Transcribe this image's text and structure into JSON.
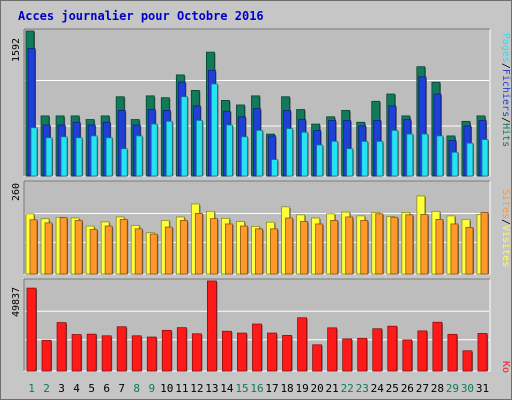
{
  "title": "Acces journalier pour Octobre 2016",
  "colors": {
    "background": "#c6c6c6",
    "panel": "#bebebe",
    "hits": "#117a5b",
    "files": "#1f3fd9",
    "pages": "#26e3f2",
    "visits": "#ffff3a",
    "sites": "#ff9a2a",
    "ko": "#ff1a1a",
    "weekend_label": "#117a5b",
    "weekday_label": "#000000"
  },
  "chart_data": [
    {
      "type": "bar",
      "title": "",
      "ymax_label": "1592",
      "ymax": 1592,
      "grid": true,
      "legend": [
        {
          "label": "Pages",
          "color": "#26e3f2"
        },
        {
          "label": "Fichiers",
          "color": "#1f3fd9"
        },
        {
          "label": "Hits",
          "color": "#117a5b"
        }
      ],
      "legend_separator": "/",
      "categories": [
        "1",
        "2",
        "3",
        "4",
        "5",
        "6",
        "7",
        "8",
        "9",
        "10",
        "11",
        "12",
        "13",
        "14",
        "15",
        "16",
        "17",
        "18",
        "19",
        "20",
        "21",
        "22",
        "23",
        "24",
        "25",
        "26",
        "27",
        "28",
        "29",
        "30",
        "31"
      ],
      "series": [
        {
          "name": "Hits",
          "values": [
            1592,
            660,
            660,
            660,
            620,
            660,
            870,
            620,
            880,
            860,
            1110,
            940,
            1360,
            830,
            780,
            880,
            460,
            870,
            730,
            570,
            650,
            720,
            590,
            820,
            900,
            660,
            1200,
            1030,
            440,
            600,
            660
          ]
        },
        {
          "name": "Fichiers",
          "values": [
            1400,
            560,
            560,
            590,
            560,
            590,
            720,
            560,
            730,
            720,
            1030,
            770,
            1160,
            710,
            650,
            740,
            440,
            720,
            620,
            500,
            610,
            610,
            550,
            610,
            770,
            620,
            1090,
            900,
            390,
            550,
            610
          ]
        },
        {
          "name": "Pages",
          "values": [
            530,
            420,
            430,
            420,
            440,
            420,
            300,
            440,
            570,
            600,
            870,
            610,
            1010,
            560,
            430,
            500,
            180,
            520,
            480,
            340,
            380,
            300,
            380,
            380,
            500,
            460,
            460,
            440,
            260,
            360,
            400
          ]
        }
      ]
    },
    {
      "type": "bar",
      "title": "",
      "ymax_label": "260",
      "ymax": 260,
      "grid": true,
      "legend": [
        {
          "label": "Sites",
          "color": "#ff9a2a"
        },
        {
          "label": "Visites",
          "color": "#ffff3a"
        }
      ],
      "legend_separator": "/",
      "categories": [
        "1",
        "2",
        "3",
        "4",
        "5",
        "6",
        "7",
        "8",
        "9",
        "10",
        "11",
        "12",
        "13",
        "14",
        "15",
        "16",
        "17",
        "18",
        "19",
        "20",
        "21",
        "22",
        "23",
        "24",
        "25",
        "26",
        "27",
        "28",
        "29",
        "30",
        "31"
      ],
      "series": [
        {
          "name": "Visites",
          "values": [
            172,
            158,
            162,
            160,
            137,
            149,
            163,
            139,
            118,
            153,
            163,
            200,
            179,
            159,
            150,
            136,
            148,
            192,
            169,
            160,
            172,
            177,
            166,
            176,
            164,
            176,
            223,
            179,
            166,
            156,
            170
          ]
        },
        {
          "name": "Sites",
          "values": [
            155,
            146,
            161,
            153,
            127,
            137,
            156,
            129,
            114,
            134,
            153,
            173,
            158,
            143,
            137,
            129,
            129,
            160,
            150,
            143,
            153,
            163,
            153,
            172,
            162,
            169,
            170,
            156,
            143,
            133,
            176
          ]
        }
      ]
    },
    {
      "type": "bar",
      "title": "",
      "ymax_label": "49837",
      "ymax": 49837,
      "grid": true,
      "legend": [
        {
          "label": "Ko",
          "color": "#ff1a1a"
        }
      ],
      "categories": [
        "1",
        "2",
        "3",
        "4",
        "5",
        "6",
        "7",
        "8",
        "9",
        "10",
        "11",
        "12",
        "13",
        "14",
        "15",
        "16",
        "17",
        "18",
        "19",
        "20",
        "21",
        "22",
        "23",
        "24",
        "25",
        "26",
        "27",
        "28",
        "29",
        "30",
        "31"
      ],
      "series": [
        {
          "name": "Ko",
          "values": [
            45900,
            17000,
            26800,
            20200,
            20400,
            19500,
            24500,
            19500,
            18800,
            22500,
            24000,
            20600,
            49837,
            22000,
            21000,
            26000,
            21000,
            19700,
            29500,
            14500,
            23900,
            17800,
            18100,
            23400,
            24800,
            17200,
            22200,
            27000,
            20300,
            11200,
            20800
          ]
        }
      ]
    }
  ],
  "day_labels": [
    {
      "text": "1",
      "weekend": true
    },
    {
      "text": "2",
      "weekend": true
    },
    {
      "text": "3",
      "weekend": false
    },
    {
      "text": "4",
      "weekend": false
    },
    {
      "text": "5",
      "weekend": false
    },
    {
      "text": "6",
      "weekend": false
    },
    {
      "text": "7",
      "weekend": false
    },
    {
      "text": "8",
      "weekend": true
    },
    {
      "text": "9",
      "weekend": true
    },
    {
      "text": "10",
      "weekend": false
    },
    {
      "text": "11",
      "weekend": false
    },
    {
      "text": "12",
      "weekend": false
    },
    {
      "text": "13",
      "weekend": false
    },
    {
      "text": "14",
      "weekend": false
    },
    {
      "text": "15",
      "weekend": true
    },
    {
      "text": "16",
      "weekend": true
    },
    {
      "text": "17",
      "weekend": false
    },
    {
      "text": "18",
      "weekend": false
    },
    {
      "text": "19",
      "weekend": false
    },
    {
      "text": "20",
      "weekend": false
    },
    {
      "text": "21",
      "weekend": false
    },
    {
      "text": "22",
      "weekend": true
    },
    {
      "text": "23",
      "weekend": true
    },
    {
      "text": "24",
      "weekend": false
    },
    {
      "text": "25",
      "weekend": false
    },
    {
      "text": "26",
      "weekend": false
    },
    {
      "text": "27",
      "weekend": false
    },
    {
      "text": "28",
      "weekend": false
    },
    {
      "text": "29",
      "weekend": true
    },
    {
      "text": "30",
      "weekend": true
    },
    {
      "text": "31",
      "weekend": false
    }
  ]
}
